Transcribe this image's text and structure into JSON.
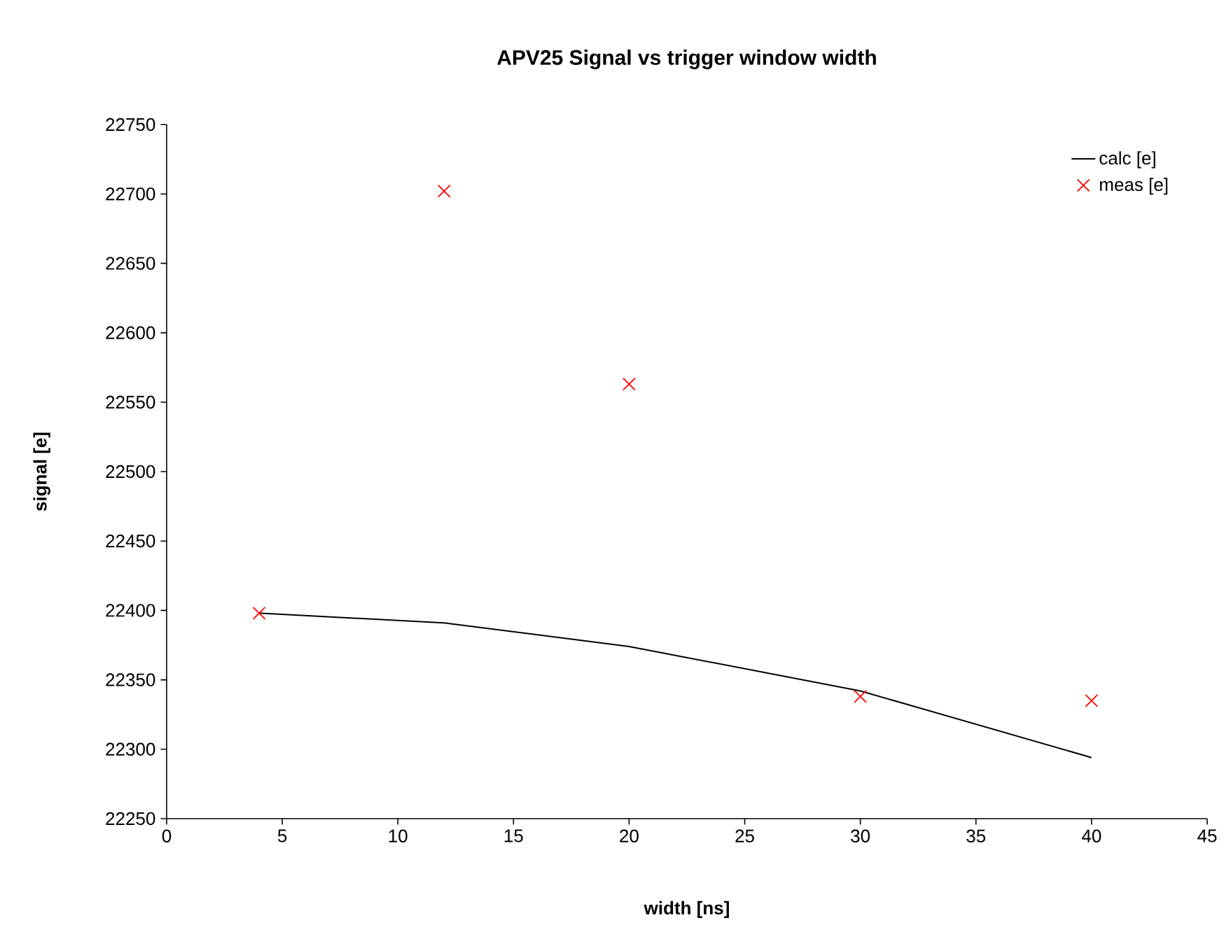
{
  "chart_data": {
    "type": "line",
    "title": "APV25 Signal vs trigger window width",
    "xlabel": "width [ns]",
    "ylabel": "signal [e]",
    "xlim": [
      0,
      45
    ],
    "xticks": [
      0,
      5,
      10,
      15,
      20,
      25,
      30,
      35,
      40,
      45
    ],
    "ylim": [
      22250,
      22750
    ],
    "yticks": [
      22250,
      22300,
      22350,
      22400,
      22450,
      22500,
      22550,
      22600,
      22650,
      22700,
      22750
    ],
    "grid": false,
    "legend": "top right",
    "series": [
      {
        "name": "calc [e]",
        "color": "#000000",
        "marker": "none",
        "x": [
          4,
          12,
          20,
          30,
          40
        ],
        "values": [
          22398,
          22391,
          22374,
          22342,
          22294
        ]
      },
      {
        "name": "meas [e]",
        "type": "scatter",
        "color": "#ff0000",
        "marker": "cross",
        "x": [
          4,
          12,
          20,
          30,
          40
        ],
        "values": [
          22398,
          22702,
          22563,
          22338,
          22335
        ]
      }
    ]
  }
}
